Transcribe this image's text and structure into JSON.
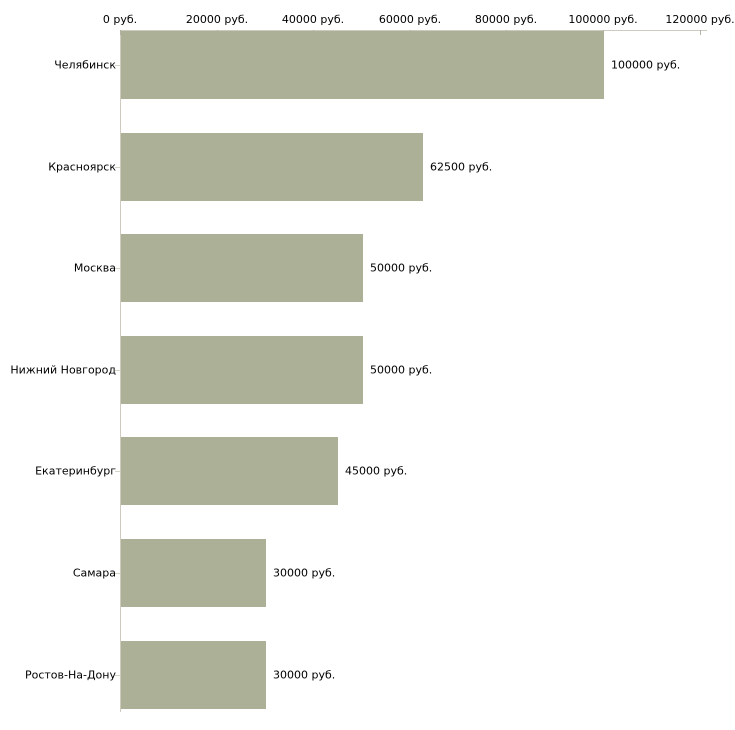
{
  "chart_data": {
    "type": "bar",
    "orientation": "horizontal",
    "title": "",
    "xlabel": "",
    "ylabel": "",
    "categories": [
      "Челябинск",
      "Красноярск",
      "Москва",
      "Нижний Новгород",
      "Екатеринбург",
      "Самара",
      "Ростов-На-Дону"
    ],
    "values": [
      100000,
      62500,
      50000,
      50000,
      45000,
      30000,
      30000
    ],
    "value_labels": [
      "100000 руб.",
      "62500 руб.",
      "50000 руб.",
      "50000 руб.",
      "45000 руб.",
      "30000 руб.",
      "30000 руб."
    ],
    "x_tick_values": [
      0,
      20000,
      40000,
      60000,
      80000,
      100000,
      120000
    ],
    "x_tick_labels": [
      "0 руб.",
      "20000 руб.",
      "40000 руб.",
      "60000 руб.",
      "80000 руб.",
      "100000 руб.",
      "120000 руб."
    ],
    "xlim": [
      0,
      120000
    ],
    "grid": false,
    "legend": null,
    "colors": {
      "bar": "#abb097",
      "axis_line": "#cdcabe",
      "axis_tick": "#b5b2a5",
      "category_tick": "#d6d3c8",
      "text": "#000000",
      "background": "#ffffff"
    }
  }
}
